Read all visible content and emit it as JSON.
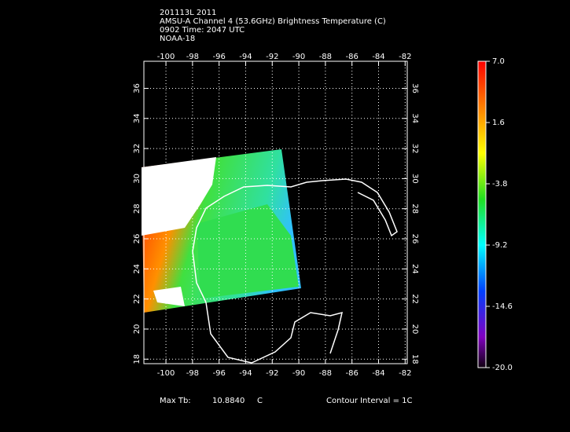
{
  "header": {
    "lines": [
      "201113L 2011",
      "AMSU-A Channel 4 (53.6GHz) Brightness Temperature (C)",
      "0902 Time: 2047 UTC",
      "NOAA-18"
    ]
  },
  "map": {
    "lonlim": [
      -101.66,
      -81.84
    ],
    "latlim": [
      17.7,
      37.8
    ],
    "lon_ticks": [
      -100,
      -98,
      -96,
      -94,
      -92,
      -90,
      -88,
      -86,
      -84,
      -82
    ],
    "lat_ticks": [
      18,
      20,
      22,
      24,
      26,
      28,
      30,
      32,
      34,
      36
    ],
    "grid": true
  },
  "colorbar": {
    "range": [
      -20,
      7
    ],
    "ticks": [
      {
        "value": 7,
        "label": "7.0"
      },
      1.6,
      -3.8,
      -9.2,
      -14.6,
      {
        "value": -20,
        "label": "-20.0"
      }
    ]
  },
  "footer": {
    "max_label": "Max Tb:",
    "max_value": "10.8840",
    "max_unit": "C",
    "contour": "Contour Interval = 1C"
  }
}
